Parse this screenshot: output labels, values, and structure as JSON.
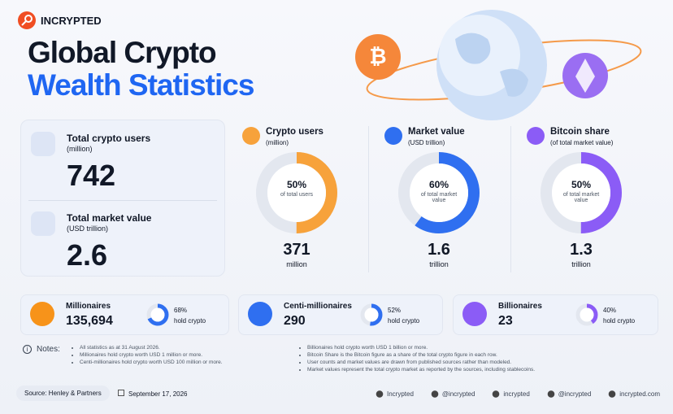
{
  "brand": "INCRYPTED",
  "title": {
    "line1": "Global Crypto",
    "line2": "Wealth Statistics"
  },
  "stats": [
    {
      "label": "Total crypto users",
      "unit": "(million)",
      "value": 742
    },
    {
      "label": "Total market value",
      "unit": "(USD trillion)",
      "value": 2.6
    }
  ],
  "donuts": [
    {
      "title": "Crypto users",
      "unit": "(million)",
      "percent": 50,
      "percent_label": "50%",
      "caption": "of total users",
      "value": 371,
      "value_unit": "million",
      "color": "#f7a23b"
    },
    {
      "title": "Market value",
      "unit": "(USD trillion)",
      "percent": 60,
      "percent_label": "60%",
      "caption": "of total market value",
      "value": 1.6,
      "value_unit": "trillion",
      "color": "#2f6ff0"
    },
    {
      "title": "Bitcoin share",
      "unit": "(of total market value)",
      "percent": 50,
      "percent_label": "50%",
      "caption": "of total market value",
      "value": 1.3,
      "value_unit": "trillion",
      "color": "#8b5cf6"
    }
  ],
  "tiers": [
    {
      "name": "Millionaires",
      "count": "135,694",
      "percent": 68,
      "percent_label": "68%",
      "caption": "hold crypto",
      "color": "#2f6ff0"
    },
    {
      "name": "Centi-millionaires",
      "count": 290,
      "percent": 52,
      "percent_label": "52%",
      "caption": "hold crypto",
      "color": "#2f6ff0"
    },
    {
      "name": "Billionaires",
      "count": 23,
      "percent": 40,
      "percent_label": "40%",
      "caption": "hold crypto",
      "color": "#8b5cf6"
    }
  ],
  "notes": {
    "label": "Notes:",
    "left": [
      "All statistics as at 31 August 2026.",
      "Millionaires hold crypto worth USD 1 million or more.",
      "Centi-millionaires hold crypto worth USD 100 million or more."
    ],
    "right": [
      "Billionaires hold crypto worth USD 1 billion or more.",
      "Bitcoin Share is the Bitcoin figure as a share of the total crypto figure in each row.",
      "User counts and market values are drawn from published sources rather than modeled.",
      "Market values represent the total crypto market as reported by the sources, including stablecoins."
    ]
  },
  "footer": {
    "source": "Source: Henley & Partners",
    "date": "September 17, 2026",
    "socials": [
      "Incrypted",
      "@incrypted",
      "incrypted",
      "@incrypted",
      "incrypted.com"
    ]
  }
}
